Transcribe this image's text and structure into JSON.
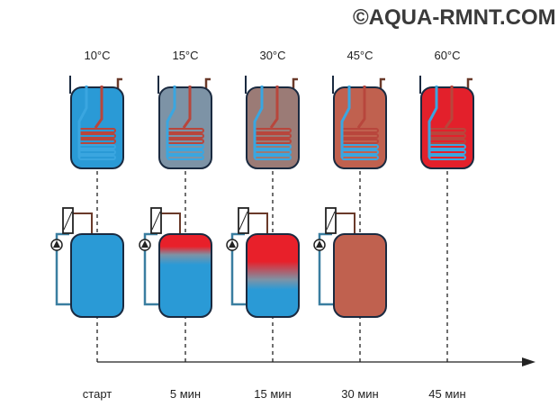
{
  "watermark": "©AQUA-RMNT.COM",
  "stages": [
    {
      "temperature": "10°C",
      "time": "старт",
      "top_color": "#2a9ad6",
      "bottom": {
        "color": "#2a9ad6",
        "hot_fraction": 0
      }
    },
    {
      "temperature": "15°C",
      "time": "5 мин",
      "top_color": "#7d93a6",
      "bottom": {
        "color": "#2a9ad6",
        "hot_fraction": 0.25
      }
    },
    {
      "temperature": "30°C",
      "time": "15 мин",
      "top_color": "#9b7b76",
      "bottom": {
        "color": "#2a9ad6",
        "hot_fraction": 0.55
      }
    },
    {
      "temperature": "45°C",
      "time": "30 мин",
      "top_color": "#c0614f",
      "bottom": {
        "color": "#c0614f",
        "hot_fraction": 0
      }
    },
    {
      "temperature": "60°C",
      "time": "45 мин",
      "top_color": "#e3202b",
      "bottom": null
    }
  ],
  "colors": {
    "hot": "#e8202a",
    "cold_pipe": "#3aa6e0",
    "hot_pipe": "#b8463c",
    "outline": "#1a2a40"
  }
}
